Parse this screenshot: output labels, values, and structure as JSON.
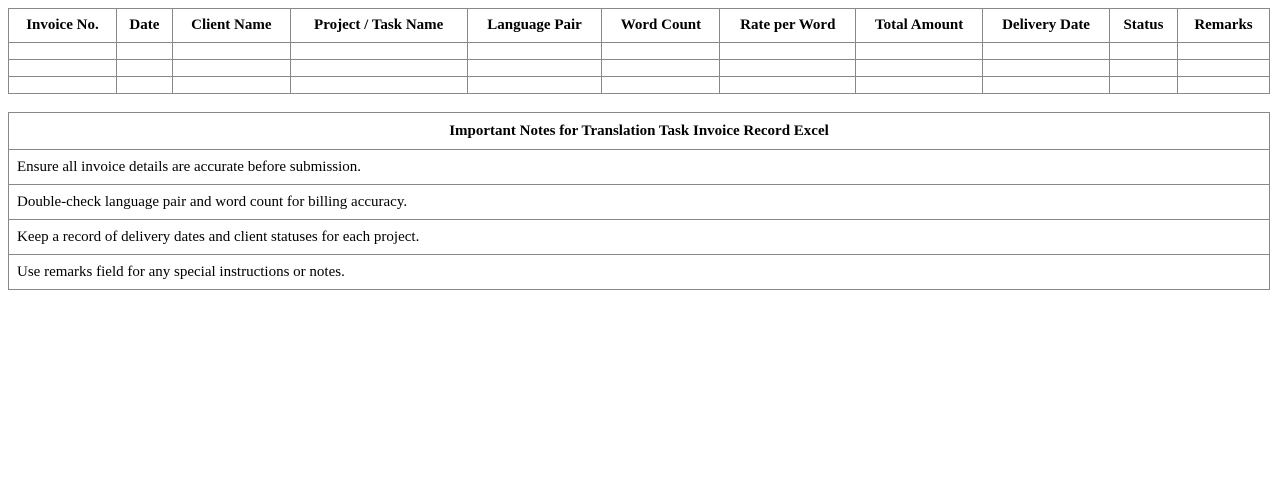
{
  "invoice_table": {
    "columns": [
      "Invoice No.",
      "Date",
      "Client Name",
      "Project / Task Name",
      "Language Pair",
      "Word Count",
      "Rate per Word",
      "Total Amount",
      "Delivery Date",
      "Status",
      "Remarks"
    ],
    "rows": [
      [
        "",
        "",
        "",
        "",
        "",
        "",
        "",
        "",
        "",
        "",
        ""
      ],
      [
        "",
        "",
        "",
        "",
        "",
        "",
        "",
        "",
        "",
        "",
        ""
      ],
      [
        "",
        "",
        "",
        "",
        "",
        "",
        "",
        "",
        "",
        "",
        ""
      ]
    ]
  },
  "notes": {
    "title": "Important Notes for Translation Task Invoice Record Excel",
    "items": [
      "Ensure all invoice details are accurate before submission.",
      "Double-check language pair and word count for billing accuracy.",
      "Keep a record of delivery dates and client statuses for each project.",
      "Use remarks field for any special instructions or notes."
    ]
  }
}
